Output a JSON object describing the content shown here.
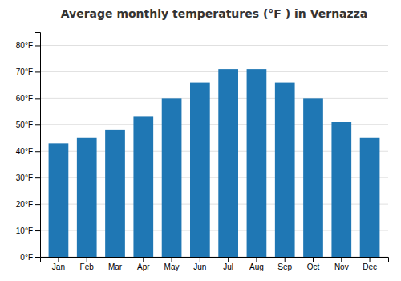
{
  "chart_data": {
    "type": "bar",
    "title": "Average monthly temperatures (°F ) in Vernazza",
    "categories": [
      "Jan",
      "Feb",
      "Mar",
      "Apr",
      "May",
      "Jun",
      "Jul",
      "Aug",
      "Sep",
      "Oct",
      "Nov",
      "Dec"
    ],
    "values": [
      43,
      45,
      48,
      53,
      60,
      66,
      71,
      71,
      66,
      60,
      51,
      45
    ],
    "ylim": [
      0,
      85
    ],
    "yticks": [
      {
        "value": 0,
        "label": "0°F"
      },
      {
        "value": 10,
        "label": "10°F"
      },
      {
        "value": 20,
        "label": "20°F"
      },
      {
        "value": 30,
        "label": "30°F"
      },
      {
        "value": 40,
        "label": "40°F"
      },
      {
        "value": 50,
        "label": "50°F"
      },
      {
        "value": 60,
        "label": "60°F"
      },
      {
        "value": 70,
        "label": "70°F"
      },
      {
        "value": 80,
        "label": "80°F"
      }
    ],
    "grid": true
  }
}
